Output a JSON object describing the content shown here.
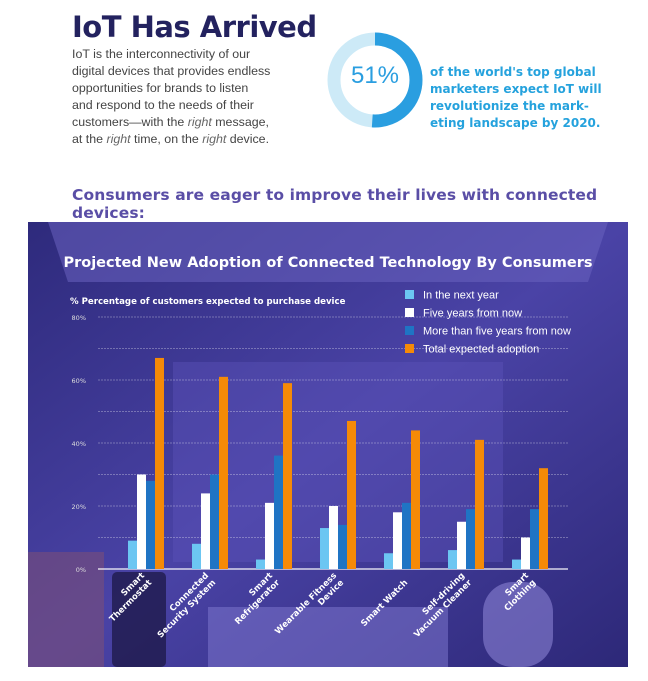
{
  "header": {
    "title": "IoT Has Arrived",
    "intro_lines": [
      [
        {
          "t": "IoT is the interconnectivity of our"
        }
      ],
      [
        {
          "t": "digital devices that provides endless"
        }
      ],
      [
        {
          "t": "opportunities for brands to listen"
        }
      ],
      [
        {
          "t": "and respond to the needs of their"
        }
      ],
      [
        {
          "t": "customers—with the "
        },
        {
          "t": "right",
          "i": true
        },
        {
          "t": " message,"
        }
      ],
      [
        {
          "t": "at the "
        },
        {
          "t": "right",
          "i": true
        },
        {
          "t": " time, on the "
        },
        {
          "t": "right",
          "i": true
        },
        {
          "t": " device."
        }
      ]
    ],
    "stat_value": "51%",
    "stat_fraction": 0.51,
    "stat_lines": [
      "of the world's top global",
      "marketers expect IoT will",
      "revolutionize the mark-",
      "eting landscape by 2020."
    ],
    "subtitle": "Consumers are eager to improve their lives with connected devices:"
  },
  "colors": {
    "title": "#23225f",
    "accent": "#2a9ee0",
    "ring_bg": "#cdeaf7",
    "panel": "#3b3593",
    "light": "#6cc6f2",
    "white": "#ffffff",
    "blue": "#1f74c4",
    "orange": "#f58a07"
  },
  "chart_data": {
    "type": "bar",
    "title": "Projected New Adoption of Connected Technology By Consumers",
    "ylabel": "% Percentage of customers expected to purchase device",
    "ylim": [
      0,
      80
    ],
    "yticks": [
      "0%",
      "20%",
      "40%",
      "60%",
      "80%"
    ],
    "grid": true,
    "legend_position": "top-right",
    "categories": [
      [
        "Smart",
        "Thermostat"
      ],
      [
        "Connected",
        "Security System"
      ],
      [
        "Smart",
        "Refrigerator"
      ],
      [
        "Wearable Fitness",
        "Device"
      ],
      [
        "Smart Watch"
      ],
      [
        "Self-driving",
        "Vacuum Cleaner"
      ],
      [
        "Smart",
        "Clothing"
      ]
    ],
    "series": [
      {
        "name": "In the next year",
        "color": "#6cc6f2",
        "values": [
          9,
          8,
          3,
          13,
          5,
          6,
          3
        ]
      },
      {
        "name": "Five years from now",
        "color": "#ffffff",
        "values": [
          30,
          24,
          21,
          20,
          18,
          15,
          10
        ]
      },
      {
        "name": "More than five years from now",
        "color": "#1f74c4",
        "values": [
          28,
          30,
          36,
          14,
          21,
          19,
          19
        ]
      },
      {
        "name": "Total expected adoption",
        "color": "#f58a07",
        "values": [
          67,
          61,
          59,
          47,
          44,
          41,
          32
        ]
      }
    ]
  }
}
